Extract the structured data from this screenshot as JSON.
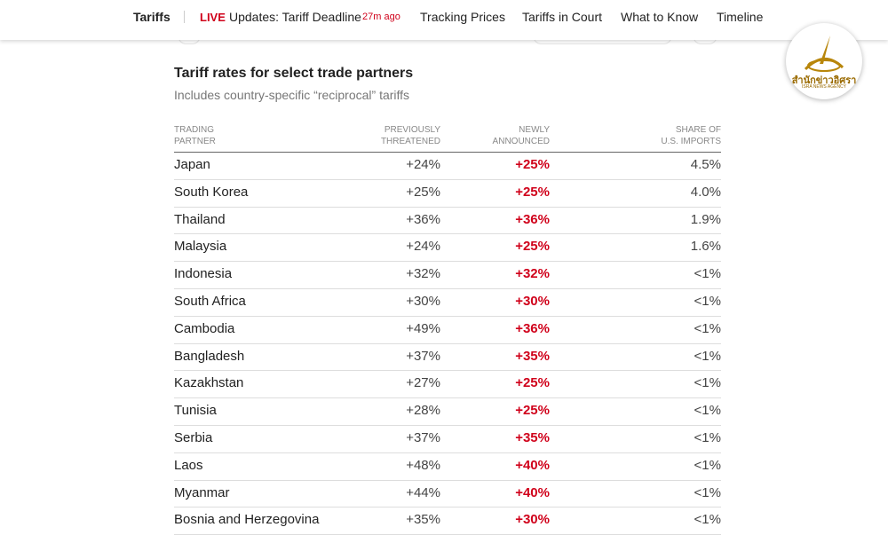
{
  "nav": {
    "brand": "Tariffs",
    "live": "LIVE",
    "headline": "Updates: Tariff Deadline",
    "time": "27m ago",
    "links": [
      "Tracking Prices",
      "Tariffs in Court",
      "What to Know",
      "Timeline"
    ]
  },
  "logo": {
    "name": "สำนักข่าวอิศรา",
    "tagline": "ISRA NEWS AGENCY"
  },
  "table": {
    "title": "Tariff rates for select trade partners",
    "subtitle": "Includes country-specific “reciprocal” tariffs",
    "headers": [
      [
        "TRADING",
        "PARTNER"
      ],
      [
        "PREVIOUSLY",
        "THREATENED"
      ],
      [
        "NEWLY",
        "ANNOUNCED"
      ],
      [
        "SHARE OF",
        "U.S. IMPORTS"
      ]
    ],
    "rows": [
      [
        "Japan",
        "+24%",
        "+25%",
        "4.5%"
      ],
      [
        "South Korea",
        "+25%",
        "+25%",
        "4.0%"
      ],
      [
        "Thailand",
        "+36%",
        "+36%",
        "1.9%"
      ],
      [
        "Malaysia",
        "+24%",
        "+25%",
        "1.6%"
      ],
      [
        "Indonesia",
        "+32%",
        "+32%",
        "<1%"
      ],
      [
        "South Africa",
        "+30%",
        "+30%",
        "<1%"
      ],
      [
        "Cambodia",
        "+49%",
        "+36%",
        "<1%"
      ],
      [
        "Bangladesh",
        "+37%",
        "+35%",
        "<1%"
      ],
      [
        "Kazakhstan",
        "+27%",
        "+25%",
        "<1%"
      ],
      [
        "Tunisia",
        "+28%",
        "+25%",
        "<1%"
      ],
      [
        "Serbia",
        "+37%",
        "+35%",
        "<1%"
      ],
      [
        "Laos",
        "+48%",
        "+40%",
        "<1%"
      ],
      [
        "Myanmar",
        "+44%",
        "+40%",
        "<1%"
      ],
      [
        "Bosnia and Herzegovina",
        "+35%",
        "+30%",
        "<1%"
      ]
    ]
  }
}
